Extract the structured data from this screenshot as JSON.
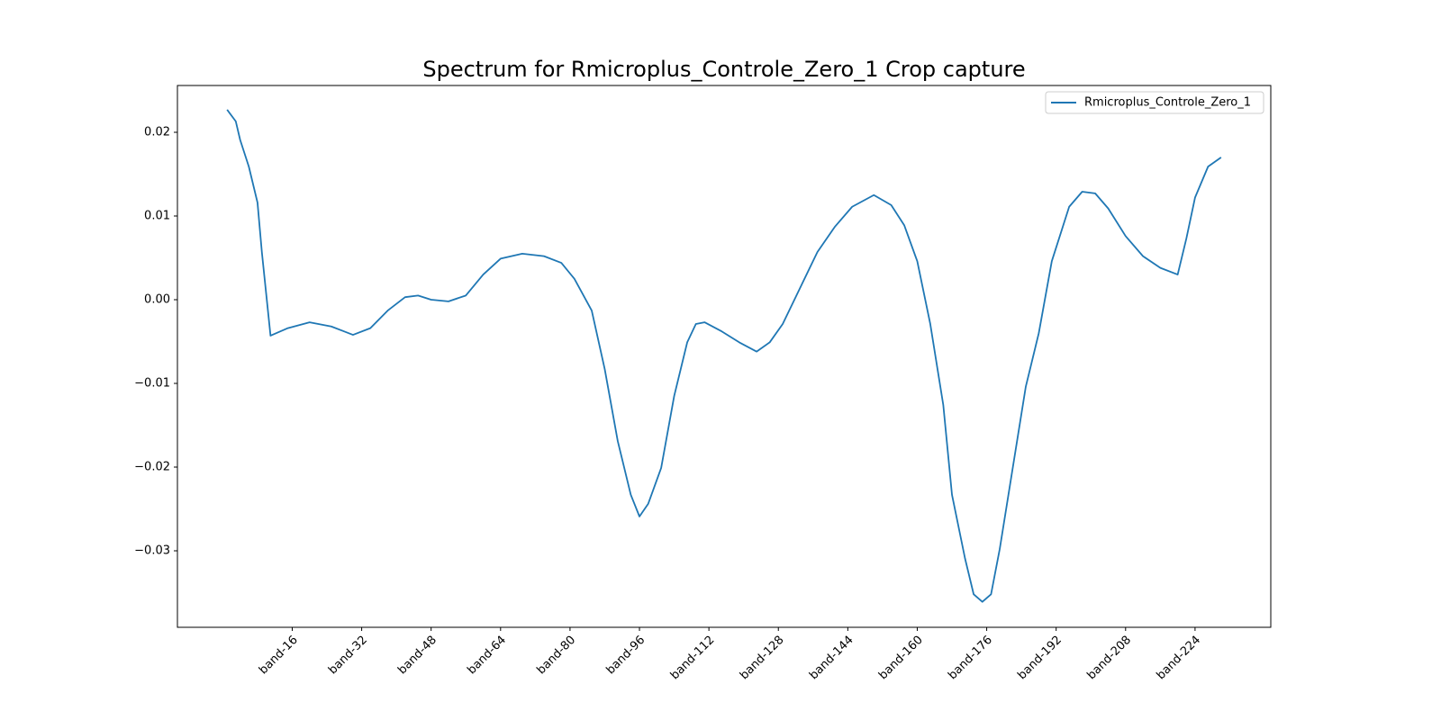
{
  "chart_data": {
    "type": "line",
    "title": "Spectrum for Rmicroplus_Controle_Zero_1 Crop capture",
    "x": [
      1,
      3,
      4,
      6,
      8,
      9,
      11,
      15,
      20,
      25,
      30,
      34,
      38,
      42,
      45,
      48,
      52,
      56,
      60,
      64,
      69,
      74,
      78,
      81,
      85,
      88,
      91,
      94,
      96,
      98,
      101,
      104,
      107,
      109,
      111,
      115,
      119,
      123,
      126,
      129,
      133,
      137,
      141,
      145,
      150,
      154,
      157,
      160,
      163,
      166,
      168,
      171,
      173,
      175,
      177,
      179,
      182,
      185,
      188,
      191,
      195,
      198,
      201,
      204,
      208,
      212,
      216,
      220,
      222,
      224,
      227,
      230
    ],
    "series": [
      {
        "name": "Rmicroplus_Controle_Zero_1",
        "color": "#1f77b4",
        "values": [
          0.0227,
          0.0213,
          0.0191,
          0.0159,
          0.0116,
          0.0057,
          -0.0043,
          -0.0034,
          -0.0027,
          -0.0032,
          -0.0042,
          -0.0034,
          -0.0013,
          0.0003,
          0.0005,
          0.0,
          -0.0002,
          0.0005,
          0.003,
          0.0049,
          0.0055,
          0.0052,
          0.0044,
          0.0025,
          -0.0013,
          -0.0083,
          -0.0169,
          -0.0233,
          -0.0259,
          -0.0244,
          -0.0201,
          -0.0115,
          -0.0051,
          -0.0029,
          -0.0027,
          -0.0038,
          -0.0051,
          -0.0062,
          -0.0051,
          -0.0029,
          0.0014,
          0.0057,
          0.0087,
          0.0111,
          0.0125,
          0.0113,
          0.0089,
          0.0046,
          -0.0029,
          -0.0126,
          -0.0233,
          -0.0309,
          -0.0352,
          -0.0361,
          -0.0352,
          -0.0298,
          -0.0201,
          -0.0104,
          -0.004,
          0.0046,
          0.0111,
          0.0129,
          0.0127,
          0.0109,
          0.0076,
          0.0052,
          0.0038,
          0.003,
          0.0073,
          0.0122,
          0.0159,
          0.017
        ]
      }
    ],
    "xlim": [
      -10.45,
      241.45
    ],
    "xticks": [
      {
        "value": 16,
        "label": "band-16"
      },
      {
        "value": 32,
        "label": "band-32"
      },
      {
        "value": 48,
        "label": "band-48"
      },
      {
        "value": 64,
        "label": "band-64"
      },
      {
        "value": 80,
        "label": "band-80"
      },
      {
        "value": 96,
        "label": "band-96"
      },
      {
        "value": 112,
        "label": "band-112"
      },
      {
        "value": 128,
        "label": "band-128"
      },
      {
        "value": 144,
        "label": "band-144"
      },
      {
        "value": 160,
        "label": "band-160"
      },
      {
        "value": 176,
        "label": "band-176"
      },
      {
        "value": 192,
        "label": "band-192"
      },
      {
        "value": 208,
        "label": "band-208"
      },
      {
        "value": 224,
        "label": "band-224"
      }
    ],
    "ylim": [
      -0.03914,
      0.02559
    ],
    "yticks": [
      {
        "value": -0.03,
        "label": "−0.03"
      },
      {
        "value": -0.02,
        "label": "−0.02"
      },
      {
        "value": -0.01,
        "label": "−0.01"
      },
      {
        "value": 0,
        "label": "0.00"
      },
      0.01,
      0.02
    ],
    "legend": "upper right"
  }
}
